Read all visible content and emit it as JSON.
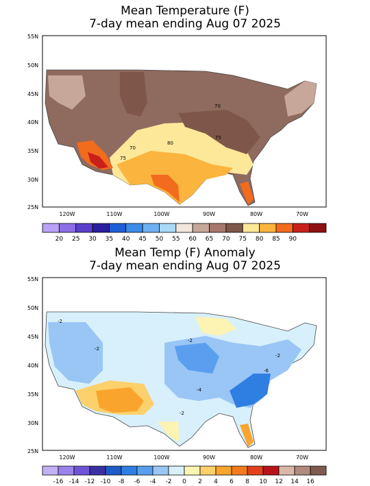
{
  "panels": [
    {
      "title1": "Mean Temperature (F)",
      "title2": "7-day mean ending Aug 07 2025",
      "lat_labels": [
        "55N",
        "50N",
        "45N",
        "40N",
        "35N",
        "30N",
        "25N"
      ],
      "lon_labels": [
        "120W",
        "110W",
        "100W",
        "90W",
        "80W",
        "70W"
      ],
      "contour_labels": [
        "70",
        "75",
        "80",
        "75",
        "70"
      ],
      "legend_labels": [
        "20",
        "25",
        "30",
        "35",
        "40",
        "45",
        "50",
        "55",
        "60",
        "65",
        "70",
        "75",
        "80",
        "85",
        "90"
      ],
      "legend_colors": [
        "#b9a3f5",
        "#8b6ee6",
        "#5a3fcc",
        "#2a1e9e",
        "#1f5fd6",
        "#3c8ce8",
        "#6fb0f2",
        "#a9d9f7",
        "#f2e6dc",
        "#c7a79a",
        "#a6786b",
        "#7e574a",
        "#fde89a",
        "#fbb43d",
        "#f36b1d",
        "#c9201b",
        "#8c1111"
      ]
    },
    {
      "title1": "Mean Temp (F) Anomaly",
      "title2": "7-day mean ending Aug 07 2025",
      "lat_labels": [
        "55N",
        "50N",
        "45N",
        "40N",
        "35N",
        "30N",
        "25N"
      ],
      "lon_labels": [
        "120W",
        "110W",
        "100W",
        "90W",
        "80W",
        "70W"
      ],
      "contour_labels": [
        "-2",
        "-2",
        "-2",
        "-4",
        "-6",
        "-2",
        "-2"
      ],
      "legend_labels": [
        "-16",
        "-14",
        "-12",
        "-10",
        "-8",
        "-6",
        "-4",
        "-2",
        "0",
        "2",
        "4",
        "6",
        "8",
        "10",
        "12",
        "14",
        "16"
      ],
      "legend_colors": [
        "#c2b0f5",
        "#9a82ec",
        "#6d55d6",
        "#3b2fa6",
        "#1f5bc7",
        "#2f7fe3",
        "#5a9fef",
        "#99c6f5",
        "#d8f0fb",
        "#fdf3b3",
        "#fcd06b",
        "#f9a52d",
        "#f57a1c",
        "#e2401a",
        "#b8151b",
        "#d9b8a8",
        "#b08a7e",
        "#7e5a4f"
      ]
    }
  ]
}
